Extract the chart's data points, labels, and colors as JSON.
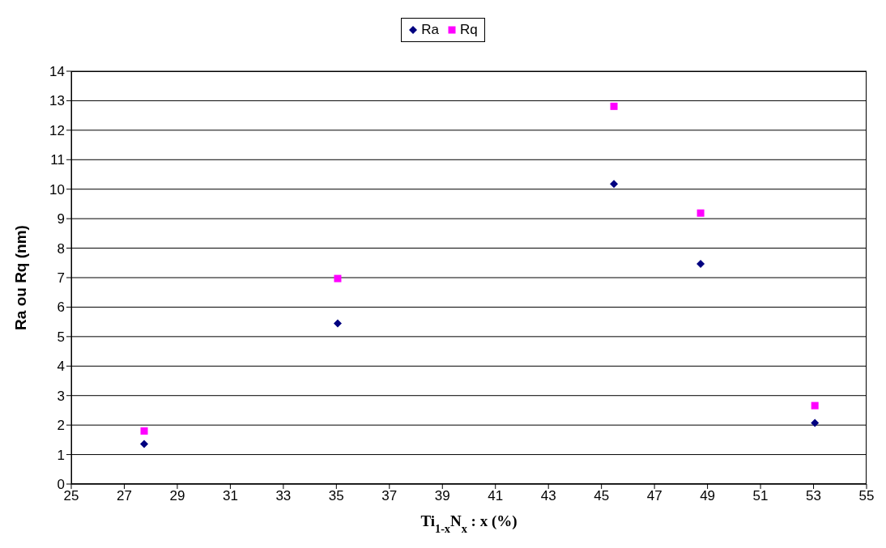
{
  "chart_data": {
    "type": "scatter",
    "xlabel": "Ti$_{1-x}$N$_{x}$ : x (%)",
    "ylabel": "Ra ou Rq (nm)",
    "xlim": [
      25,
      55
    ],
    "xticks": [
      25,
      27,
      29,
      31,
      33,
      35,
      37,
      39,
      41,
      43,
      45,
      47,
      49,
      51,
      53,
      55
    ],
    "ylim": [
      0,
      14
    ],
    "yticks": [
      0,
      1,
      2,
      3,
      4,
      5,
      6,
      7,
      8,
      9,
      10,
      11,
      12,
      13,
      14
    ],
    "x": [
      27.75,
      35.05,
      45.47,
      48.74,
      53.05
    ],
    "series": [
      {
        "name": "Ra",
        "color": "#000080",
        "marker": "diamond",
        "values": [
          1.36,
          5.45,
          10.18,
          7.47,
          2.07
        ]
      },
      {
        "name": "Rq",
        "color": "#ff00ff",
        "marker": "square",
        "values": [
          1.8,
          6.97,
          12.81,
          9.19,
          2.66
        ]
      }
    ],
    "grid": "y",
    "legend": "top"
  }
}
